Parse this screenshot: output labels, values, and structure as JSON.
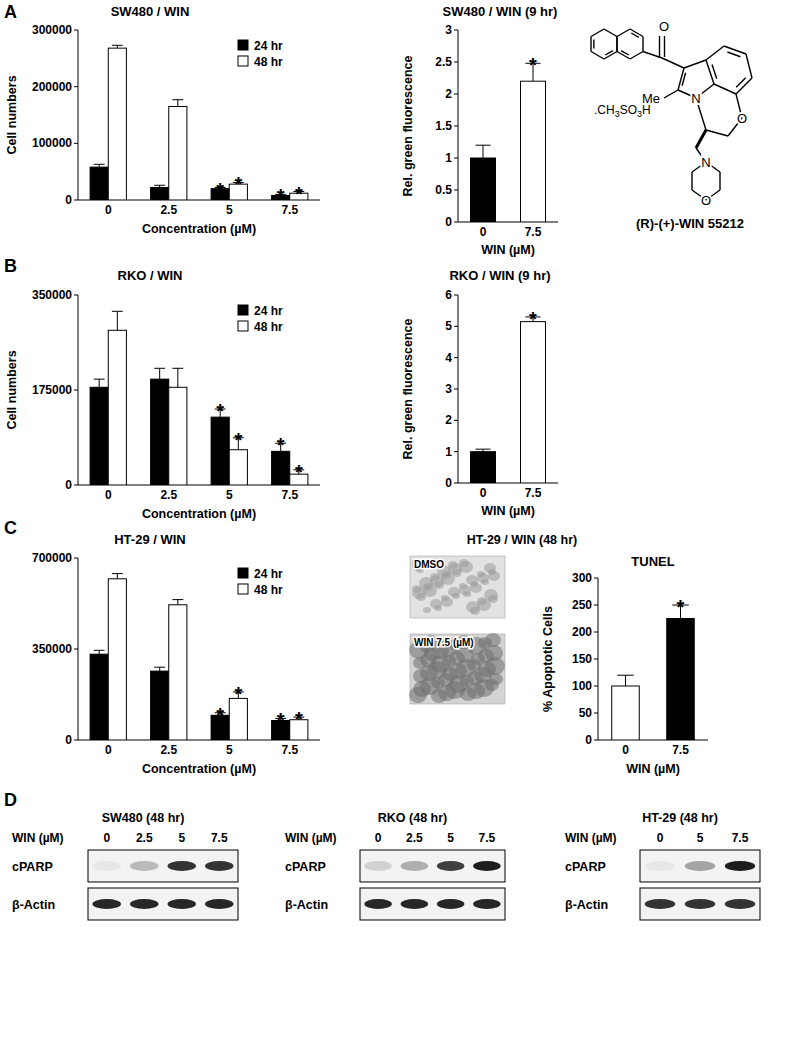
{
  "panel_labels": [
    "A",
    "B",
    "C",
    "D"
  ],
  "chart_data": [
    {
      "type": "bar",
      "title": "SW480 / WIN",
      "x_label": "Concentration (µM)",
      "y_label": "Cell numbers",
      "categories": [
        "0",
        "2.5",
        "5",
        "7.5"
      ],
      "series": [
        {
          "name": "24 hr",
          "color": "#000000",
          "values": [
            58000,
            22000,
            20000,
            8000
          ],
          "errors": [
            5000,
            4000,
            2000,
            2000
          ]
        },
        {
          "name": "48 hr",
          "color": "#ffffff",
          "values": [
            268000,
            165000,
            28000,
            12000
          ],
          "errors": [
            5000,
            12000,
            3000,
            3000
          ]
        }
      ],
      "ylim": [
        0,
        300000
      ],
      "yticks": [
        0,
        100000,
        200000,
        300000
      ],
      "grid": false,
      "legend": "upper right",
      "annotations": [
        {
          "series": 0,
          "index": 2,
          "text": "*"
        },
        {
          "series": 1,
          "index": 2,
          "text": "*"
        },
        {
          "series": 0,
          "index": 3,
          "text": "*"
        },
        {
          "series": 1,
          "index": 3,
          "text": "*"
        }
      ]
    },
    {
      "type": "bar",
      "title": "SW480 / WIN (9 hr)",
      "x_label": "WIN (µM)",
      "y_label": "Rel. green fluorescence",
      "categories": [
        "0",
        "7.5"
      ],
      "values": [
        1,
        2.2
      ],
      "errors": [
        0.2,
        0.28
      ],
      "colors": [
        "#000000",
        "#ffffff"
      ],
      "ylim": [
        0,
        3
      ],
      "yticks": [
        0,
        0.5,
        1,
        1.5,
        2,
        2.5,
        3
      ],
      "grid": false,
      "annotations": [
        {
          "index": 1,
          "text": "*"
        }
      ]
    },
    {
      "type": "bar",
      "title": "RKO / WIN",
      "x_label": "Concentration (µM)",
      "y_label": "Cell numbers",
      "categories": [
        "0",
        "2.5",
        "5",
        "7.5"
      ],
      "series": [
        {
          "name": "24 hr",
          "color": "#000000",
          "values": [
            180000,
            195000,
            125000,
            62000
          ],
          "errors": [
            15000,
            20000,
            15000,
            15000
          ]
        },
        {
          "name": "48 hr",
          "color": "#ffffff",
          "values": [
            285000,
            180000,
            65000,
            20000
          ],
          "errors": [
            35000,
            35000,
            22000,
            8000
          ]
        }
      ],
      "ylim": [
        0,
        350000
      ],
      "yticks": [
        0,
        175000,
        350000
      ],
      "grid": false,
      "legend": "upper right",
      "annotations": [
        {
          "series": 0,
          "index": 2,
          "text": "*"
        },
        {
          "series": 1,
          "index": 2,
          "text": "*"
        },
        {
          "series": 0,
          "index": 3,
          "text": "*"
        },
        {
          "series": 1,
          "index": 3,
          "text": "*"
        }
      ]
    },
    {
      "type": "bar",
      "title": "RKO / WIN (9 hr)",
      "x_label": "WIN (µM)",
      "y_label": "Rel. green fluorescence",
      "categories": [
        "0",
        "7.5"
      ],
      "values": [
        1,
        5.15
      ],
      "errors": [
        0.08,
        0.15
      ],
      "colors": [
        "#000000",
        "#ffffff"
      ],
      "ylim": [
        0,
        6
      ],
      "yticks": [
        0,
        1,
        2,
        3,
        4,
        5,
        6
      ],
      "grid": false,
      "annotations": [
        {
          "index": 1,
          "text": "*"
        }
      ]
    },
    {
      "type": "bar",
      "title": "HT-29 / WIN",
      "x_label": "Concentration (µM)",
      "categories": [
        "0",
        "2.5",
        "5",
        "7.5"
      ],
      "series": [
        {
          "name": "24 hr",
          "color": "#000000",
          "values": [
            330000,
            265000,
            95000,
            75000
          ],
          "errors": [
            15000,
            15000,
            10000,
            8000
          ]
        },
        {
          "name": "48 hr",
          "color": "#ffffff",
          "values": [
            620000,
            520000,
            160000,
            78000
          ],
          "errors": [
            20000,
            20000,
            25000,
            10000
          ]
        }
      ],
      "ylim": [
        0,
        700000
      ],
      "yticks": [
        0,
        350000,
        700000
      ],
      "grid": false,
      "legend": "upper right",
      "annotations": [
        {
          "series": 0,
          "index": 2,
          "text": "*"
        },
        {
          "series": 1,
          "index": 2,
          "text": "*"
        },
        {
          "series": 0,
          "index": 3,
          "text": "*"
        },
        {
          "series": 1,
          "index": 3,
          "text": "*"
        }
      ]
    },
    {
      "type": "bar",
      "title": "TUNEL",
      "x_label": "WIN (µM)",
      "y_label": "% Apoptotic Cells",
      "categories": [
        "0",
        "7.5"
      ],
      "values": [
        100,
        225
      ],
      "errors": [
        20,
        25
      ],
      "colors": [
        "#ffffff",
        "#000000"
      ],
      "ylim": [
        0,
        300
      ],
      "yticks": [
        0,
        50,
        100,
        150,
        200,
        250,
        300
      ],
      "grid": false,
      "annotations": [
        {
          "index": 1,
          "text": "*"
        }
      ]
    }
  ],
  "structure": {
    "name": "(R)-(+)-WIN 55212",
    "salt": ".CH3SO3H",
    "atoms": [
      "O",
      "Me",
      "N",
      "O",
      "N",
      "O"
    ]
  },
  "micrographs": {
    "title": "HT-29 / WIN (48 hr)",
    "images": [
      "DMSO",
      "WIN 7.5 (µM)"
    ]
  },
  "blots": [
    {
      "title": "SW480 (48 hr)",
      "treatment_label": "WIN (µM)",
      "lanes": [
        "0",
        "2.5",
        "5",
        "7.5"
      ],
      "rows": [
        {
          "label": "cPARP",
          "intensity": [
            0.05,
            0.25,
            0.85,
            0.85
          ]
        },
        {
          "label": "β-Actin",
          "intensity": [
            0.9,
            0.9,
            0.9,
            0.9
          ]
        }
      ]
    },
    {
      "title": "RKO (48 hr)",
      "treatment_label": "WIN (µM)",
      "lanes": [
        "0",
        "2.5",
        "5",
        "7.5"
      ],
      "rows": [
        {
          "label": "cPARP",
          "intensity": [
            0.15,
            0.3,
            0.8,
            0.95
          ]
        },
        {
          "label": "β-Actin",
          "intensity": [
            0.9,
            0.9,
            0.9,
            0.9
          ]
        }
      ]
    },
    {
      "title": "HT-29 (48 hr)",
      "treatment_label": "WIN (µM)",
      "lanes": [
        "0",
        "5",
        "7.5"
      ],
      "rows": [
        {
          "label": "cPARP",
          "intensity": [
            0.05,
            0.35,
            0.95
          ]
        },
        {
          "label": "β-Actin",
          "intensity": [
            0.85,
            0.85,
            0.85
          ]
        }
      ]
    }
  ]
}
